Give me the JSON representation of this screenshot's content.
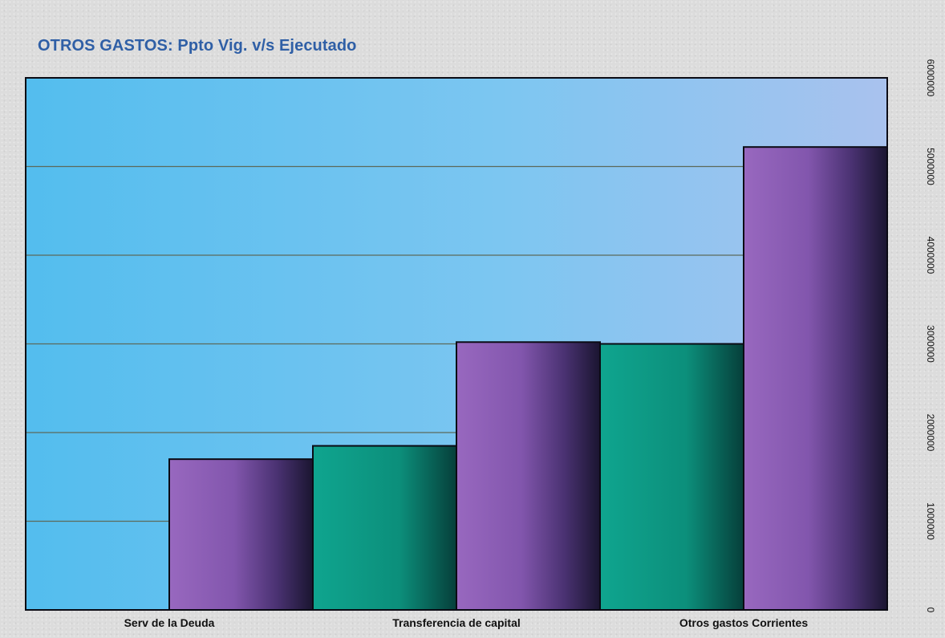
{
  "chart_data": {
    "type": "bar",
    "title": "OTROS GASTOS: Ppto Vig. v/s Ejecutado",
    "categories": [
      "Serv de la Deuda",
      "Transferencia de capital",
      "Otros gastos Corrientes"
    ],
    "series": [
      {
        "values": [
          0,
          1850000,
          3000000
        ],
        "color": "#0e9b86"
      },
      {
        "values": [
          1700000,
          3020000,
          5220000
        ],
        "color": "#8e5cb0"
      }
    ],
    "ylim": [
      0,
      6000000
    ],
    "yticks": [
      "0",
      "1000000",
      "2000000",
      "3000000",
      "4000000",
      "5000000",
      "6000000"
    ],
    "ytick_values": [
      0,
      1000000,
      2000000,
      3000000,
      4000000,
      5000000,
      6000000
    ],
    "grid": true,
    "y_axis_side": "right",
    "legend": "none",
    "plot_background": "#5cc1ef"
  }
}
